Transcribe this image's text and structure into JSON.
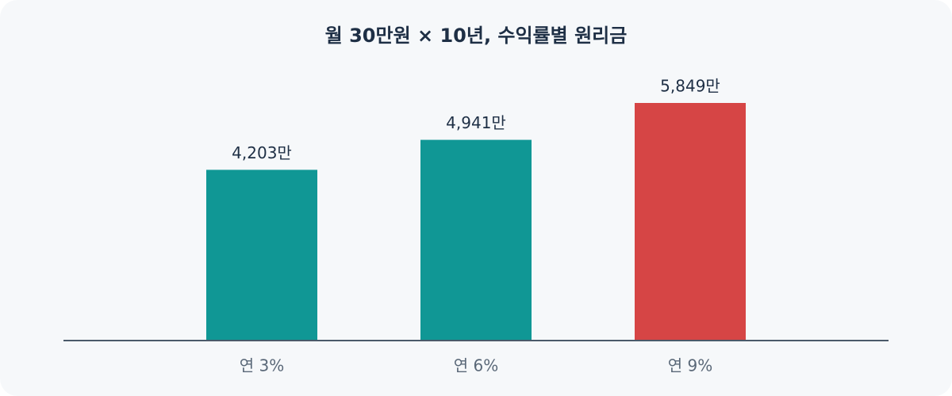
{
  "chart_data": {
    "type": "bar",
    "title": "월 30만원 × 10년, 수익률별 원리금",
    "categories": [
      "연 3%",
      "연 6%",
      "연 9%"
    ],
    "values": [
      4203,
      4941,
      5849
    ],
    "value_labels": [
      "4,203만",
      "4,941만",
      "5,849만"
    ],
    "colors": [
      "#109795",
      "#109795",
      "#d64545"
    ]
  }
}
